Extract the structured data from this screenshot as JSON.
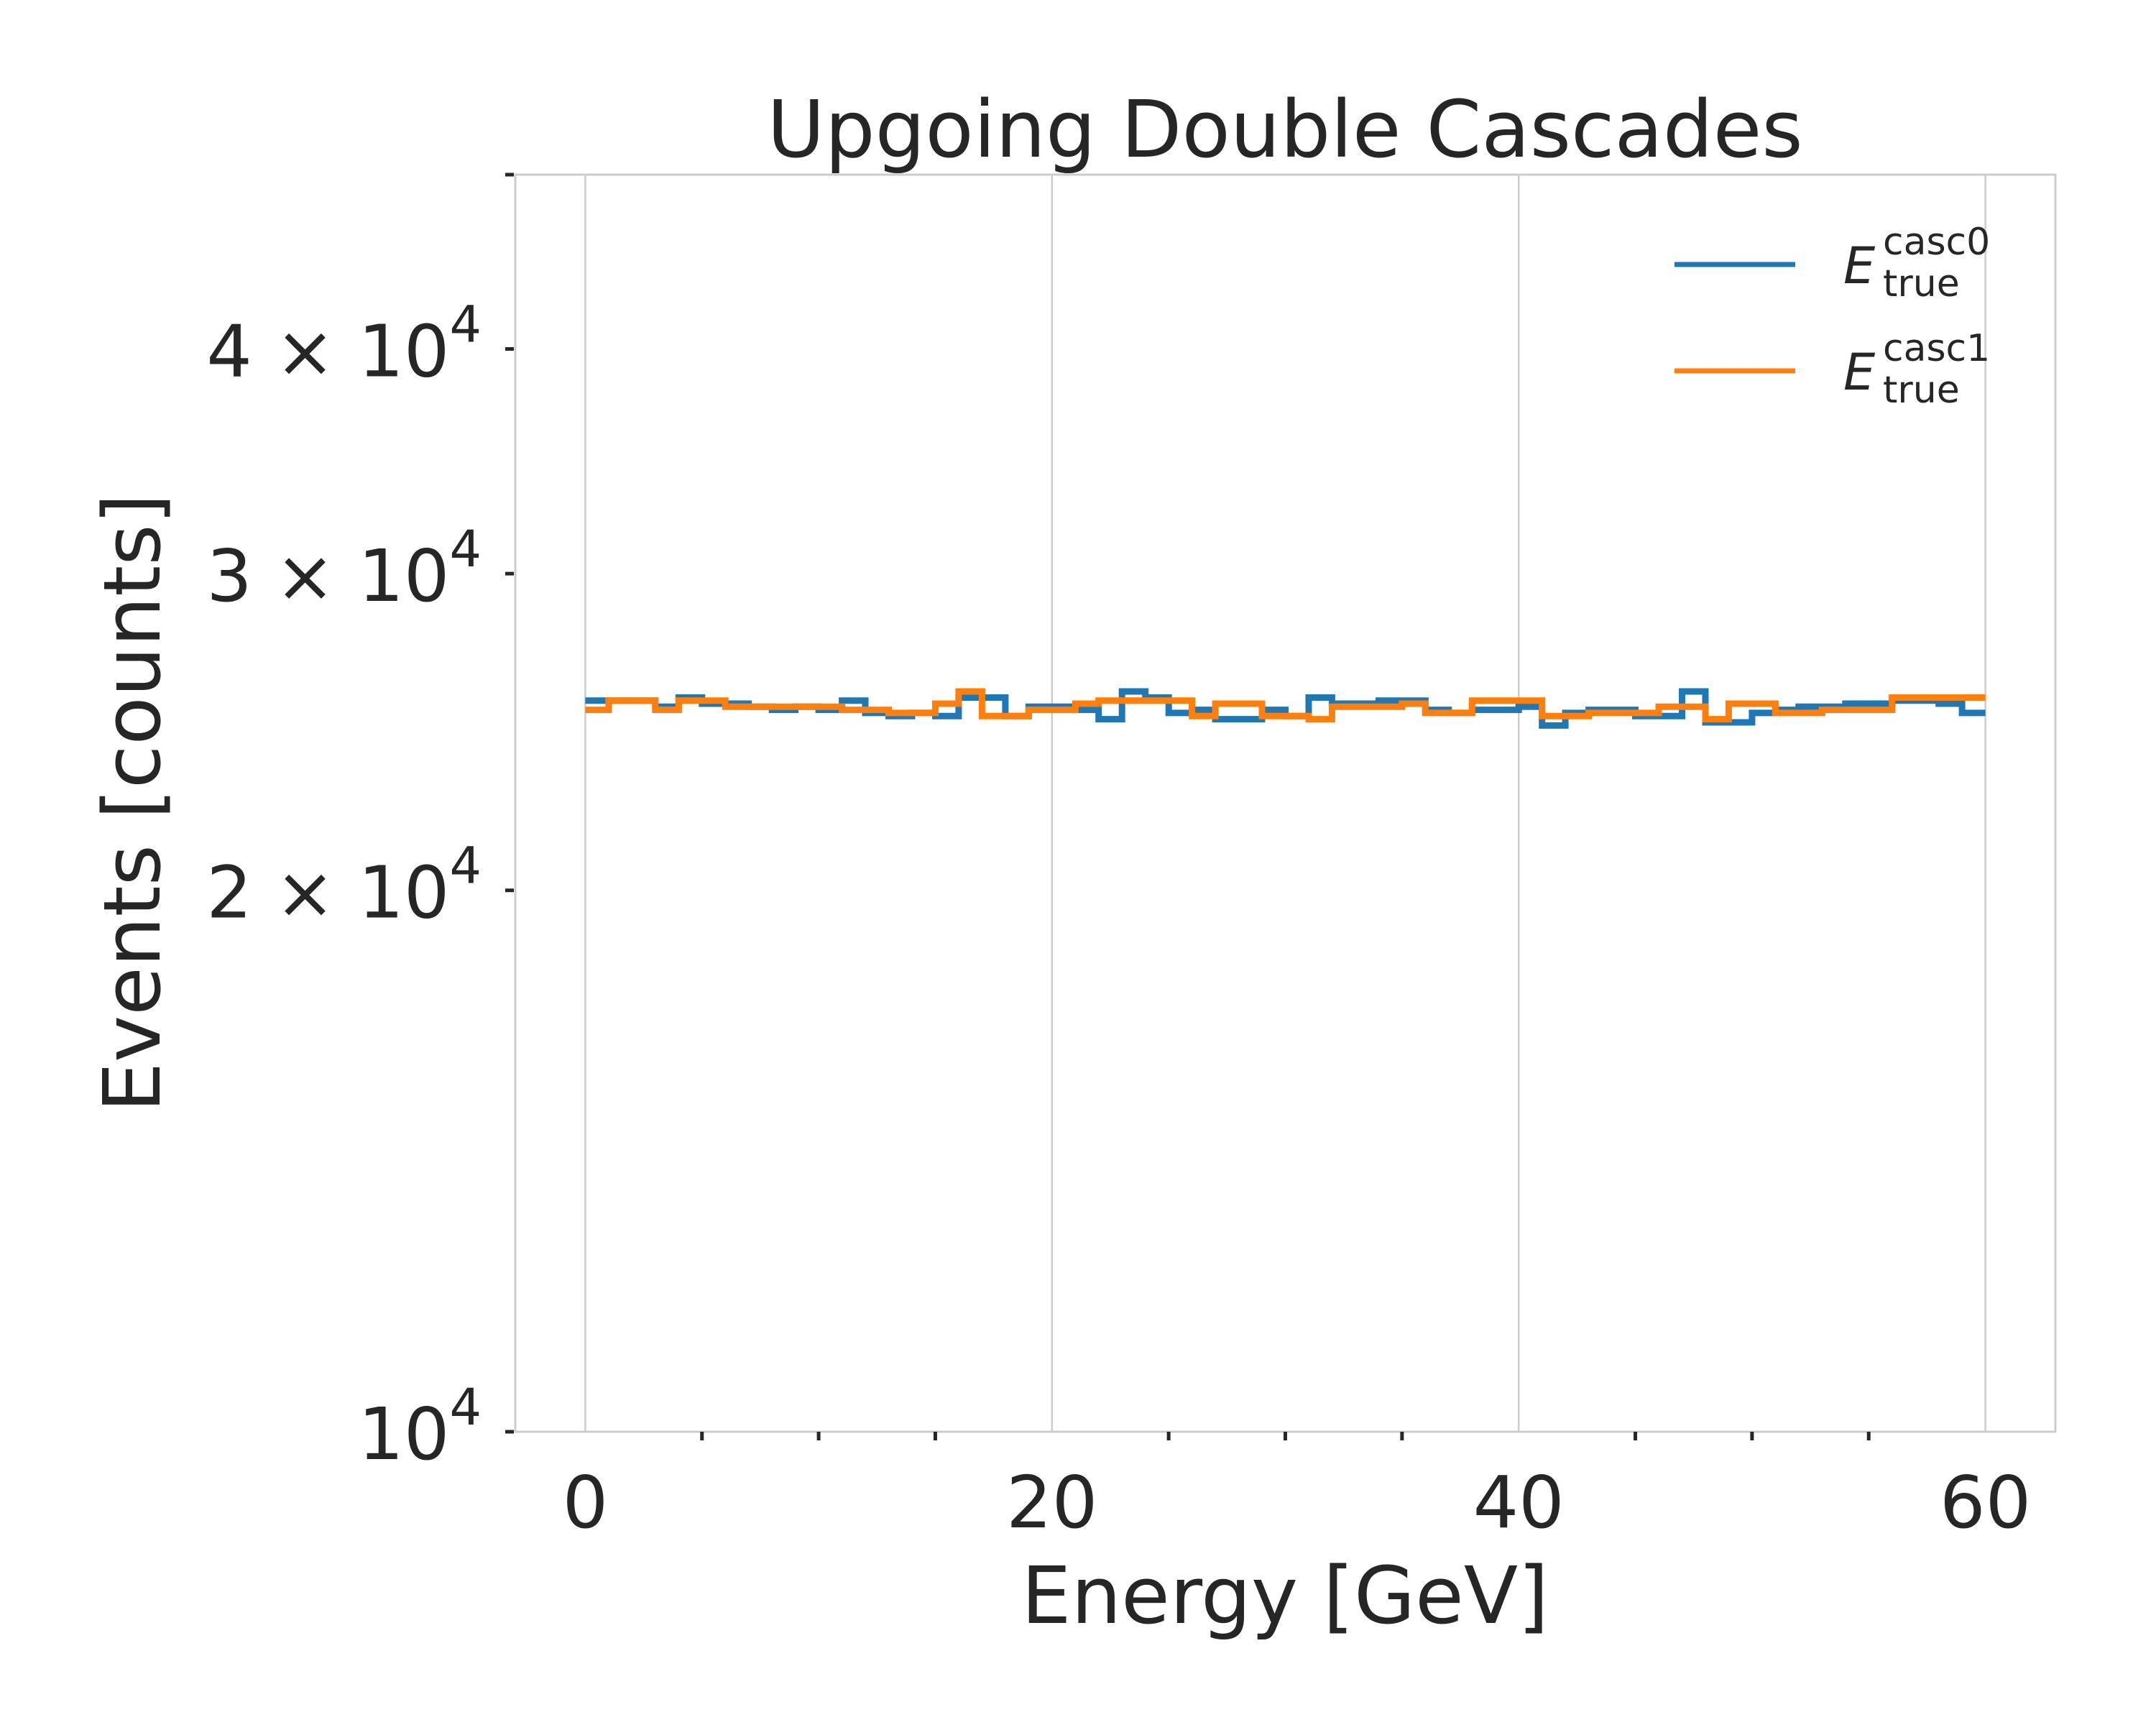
{
  "chart_data": {
    "type": "line",
    "style": "step",
    "title": "Upgoing Double Cascades",
    "xlabel": "Energy [GeV]",
    "ylabel": "Events [counts]",
    "xlim": [
      -3,
      63
    ],
    "ylim": [
      10000,
      50000
    ],
    "yscale": "log",
    "grid": "vertical",
    "legend_position": "top-right",
    "x_ticks": [
      0,
      20,
      40,
      60
    ],
    "y_ticks": [
      {
        "value": 10000,
        "base": "10",
        "exp": "4",
        "prefix": ""
      },
      {
        "value": 20000,
        "base": "10",
        "exp": "4",
        "prefix": "2 × "
      },
      {
        "value": 30000,
        "base": "10",
        "exp": "4",
        "prefix": "3 × "
      },
      {
        "value": 40000,
        "base": "10",
        "exp": "4",
        "prefix": "4 × "
      }
    ],
    "bin_edges": [
      0,
      1,
      2,
      3,
      4,
      5,
      6,
      7,
      8,
      9,
      10,
      11,
      12,
      13,
      14,
      15,
      16,
      17,
      18,
      19,
      20,
      21,
      22,
      23,
      24,
      25,
      26,
      27,
      28,
      29,
      30,
      31,
      32,
      33,
      34,
      35,
      36,
      37,
      38,
      39,
      40,
      41,
      42,
      43,
      44,
      45,
      46,
      47,
      48,
      49,
      50,
      51,
      52,
      53,
      54,
      55,
      56,
      57,
      58,
      59,
      60
    ],
    "series": [
      {
        "name": "E_true^casc0",
        "label_main": "E",
        "label_sub": "true",
        "label_sup": "casc0",
        "color": "#1f77b4",
        "values": [
          25500,
          25500,
          25500,
          25300,
          25600,
          25400,
          25400,
          25300,
          25200,
          25300,
          25200,
          25500,
          25100,
          25000,
          25100,
          25000,
          25600,
          25600,
          25000,
          25300,
          25300,
          25200,
          24900,
          25800,
          25600,
          25100,
          25200,
          24900,
          24900,
          25200,
          25000,
          25600,
          25400,
          25400,
          25500,
          25500,
          25200,
          25100,
          25200,
          25200,
          25300,
          24700,
          25100,
          25200,
          25200,
          25000,
          25000,
          25800,
          24800,
          24800,
          25100,
          25200,
          25300,
          25300,
          25400,
          25400,
          25500,
          25500,
          25400,
          25100
        ]
      },
      {
        "name": "E_true^casc1",
        "label_main": "E",
        "label_sub": "true",
        "label_sup": "casc1",
        "color": "#ff7f0e",
        "values": [
          25200,
          25500,
          25500,
          25200,
          25500,
          25500,
          25300,
          25300,
          25300,
          25300,
          25300,
          25200,
          25200,
          25100,
          25100,
          25400,
          25800,
          25000,
          25000,
          25200,
          25200,
          25400,
          25500,
          25500,
          25500,
          25500,
          25000,
          25400,
          25400,
          25000,
          25000,
          24900,
          25300,
          25300,
          25300,
          25400,
          25100,
          25100,
          25500,
          25500,
          25500,
          25000,
          25000,
          25100,
          25100,
          25100,
          25300,
          25300,
          24900,
          25400,
          25400,
          25100,
          25100,
          25200,
          25200,
          25200,
          25600,
          25600,
          25600,
          25600
        ]
      }
    ]
  }
}
